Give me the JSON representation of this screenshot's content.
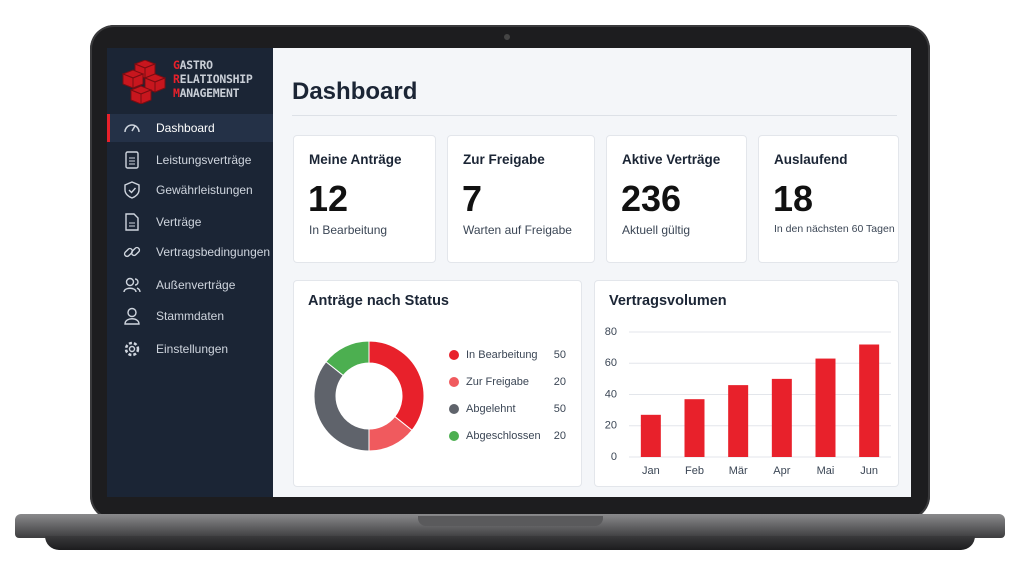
{
  "sidebar": {
    "brand": [
      "GASTRO",
      "RELATIONSHIP",
      "MANAGEMENT"
    ],
    "nav": [
      "Dashboard",
      "Leistungsverträge",
      "Gewährleistungen",
      "Verträge",
      "Vertragsbedingungen",
      "Außenverträge",
      "Stammdaten",
      "Einstellungen"
    ]
  },
  "header": {
    "title": "Dashboard"
  },
  "kpis": [
    {
      "label": "Meine Anträge",
      "value": 12,
      "note": "In Bearbeitung"
    },
    {
      "label": "Zur Freigabe",
      "value": 7,
      "note": "Warten auf Freigabe"
    },
    {
      "label": "Aktive Verträge",
      "value": 236,
      "note": "Aktuell gültig"
    },
    {
      "label": "Auslaufend",
      "value": 18,
      "note": "In den nächsten 60 Tagen"
    }
  ],
  "chart_data": [
    {
      "type": "pie",
      "donut": true,
      "title": "Anträge nach Status",
      "categories": [
        "In Bearbeitung",
        "Zur Freigabe",
        "Abgelehnt",
        "Abgeschlossen"
      ],
      "values": [
        50,
        20,
        50,
        20
      ],
      "colors": [
        "#e8212b",
        "#f05a5e",
        "#5f636b",
        "#4caf50"
      ]
    },
    {
      "type": "bar",
      "title": "Vertragsvolumen",
      "categories": [
        "Jan",
        "Feb",
        "Mär",
        "Apr",
        "Mai",
        "Jun"
      ],
      "values": [
        27,
        37,
        46,
        50,
        63,
        72
      ],
      "color": "#e8212b",
      "ylim": [
        0,
        80
      ],
      "yticks": [
        0,
        20,
        40,
        60,
        80
      ],
      "grid": true
    }
  ]
}
